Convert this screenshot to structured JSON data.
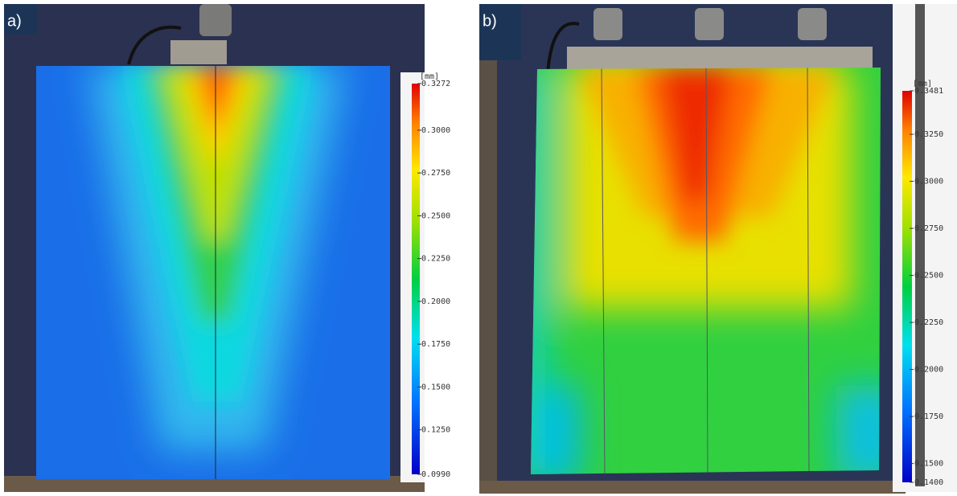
{
  "panels": [
    {
      "label": "a)",
      "colorbar": {
        "unit": "[mm]",
        "range": [
          0.099,
          0.3272
        ],
        "ticks": [
          {
            "value": 0.3272,
            "label": "0.3272"
          },
          {
            "value": 0.3,
            "label": "0.3000"
          },
          {
            "value": 0.275,
            "label": "0.2750"
          },
          {
            "value": 0.25,
            "label": "0.2500"
          },
          {
            "value": 0.225,
            "label": "0.2250"
          },
          {
            "value": 0.2,
            "label": "0.2000"
          },
          {
            "value": 0.175,
            "label": "0.1750"
          },
          {
            "value": 0.15,
            "label": "0.1500"
          },
          {
            "value": 0.125,
            "label": "0.1250"
          },
          {
            "value": 0.099,
            "label": "0.0990"
          }
        ]
      }
    },
    {
      "label": "b)",
      "colorbar": {
        "unit": "[mm]",
        "range": [
          0.14,
          0.3481
        ],
        "ticks": [
          {
            "value": 0.3481,
            "label": "0.3481"
          },
          {
            "value": 0.325,
            "label": "0.3250"
          },
          {
            "value": 0.3,
            "label": "0.3000"
          },
          {
            "value": 0.275,
            "label": "0.2750"
          },
          {
            "value": 0.25,
            "label": "0.2500"
          },
          {
            "value": 0.225,
            "label": "0.2250"
          },
          {
            "value": 0.2,
            "label": "0.2000"
          },
          {
            "value": 0.175,
            "label": "0.1750"
          },
          {
            "value": 0.15,
            "label": "0.1500"
          },
          {
            "value": 0.14,
            "label": "0.1400"
          }
        ]
      }
    }
  ]
}
